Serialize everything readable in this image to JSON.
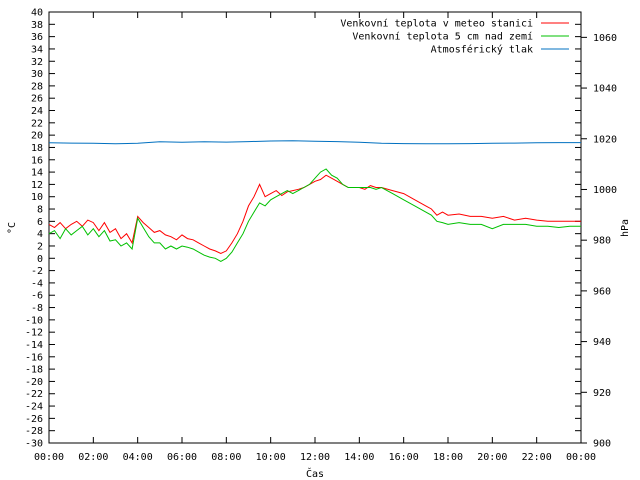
{
  "chart_data": {
    "type": "line",
    "title": "",
    "xlabel": "Čas",
    "ylabel": "°C",
    "y2label": "hPa",
    "x_hours_range": [
      0,
      24
    ],
    "ylim": [
      -30,
      40
    ],
    "y2lim": [
      900,
      1070
    ],
    "grid": false,
    "legend_position": "top-right",
    "x_ticks": [
      "00:00",
      "02:00",
      "04:00",
      "06:00",
      "08:00",
      "10:00",
      "12:00",
      "14:00",
      "16:00",
      "18:00",
      "20:00",
      "22:00",
      "00:00"
    ],
    "series": [
      {
        "name": "Venkovní teplota v meteo stanici",
        "color": "#ff0000",
        "axis": "left",
        "x": [
          0,
          0.25,
          0.5,
          0.75,
          1,
          1.25,
          1.5,
          1.75,
          2,
          2.25,
          2.5,
          2.75,
          3,
          3.25,
          3.5,
          3.75,
          4,
          4.25,
          4.5,
          4.75,
          5,
          5.25,
          5.5,
          5.75,
          6,
          6.25,
          6.5,
          6.75,
          7,
          7.25,
          7.5,
          7.75,
          8,
          8.25,
          8.5,
          8.75,
          9,
          9.25,
          9.5,
          9.75,
          10,
          10.25,
          10.5,
          10.75,
          11,
          11.25,
          11.5,
          11.75,
          12,
          12.25,
          12.5,
          12.75,
          13,
          13.25,
          13.5,
          13.75,
          14,
          14.25,
          14.5,
          14.75,
          15,
          15.5,
          16,
          16.5,
          17,
          17.25,
          17.5,
          17.75,
          18,
          18.5,
          19,
          19.5,
          20,
          20.5,
          21,
          21.5,
          22,
          22.5,
          23,
          23.5,
          24
        ],
        "values": [
          5.5,
          5,
          5.8,
          4.8,
          5.5,
          6,
          5.2,
          6.2,
          5.8,
          4.5,
          5.8,
          4.2,
          4.8,
          3.2,
          4,
          2.5,
          6.8,
          5.8,
          5,
          4.2,
          4.5,
          3.8,
          3.5,
          3,
          3.8,
          3.2,
          3,
          2.5,
          2,
          1.5,
          1.2,
          0.8,
          1.2,
          2.5,
          4,
          6,
          8.5,
          10,
          12,
          10,
          10.5,
          11,
          10.2,
          10.8,
          11,
          11.2,
          11.5,
          12,
          12.5,
          12.8,
          13.5,
          13,
          12.5,
          12,
          11.5,
          11.5,
          11.5,
          11.2,
          11.8,
          11.5,
          11.5,
          11,
          10.5,
          9.5,
          8.5,
          8,
          7,
          7.5,
          7,
          7.2,
          6.8,
          6.8,
          6.5,
          6.8,
          6.2,
          6.5,
          6.2,
          6,
          6,
          6,
          6
        ]
      },
      {
        "name": "Venkovní teplota 5 cm nad zemí",
        "color": "#00c000",
        "axis": "left",
        "x": [
          0,
          0.25,
          0.5,
          0.75,
          1,
          1.25,
          1.5,
          1.75,
          2,
          2.25,
          2.5,
          2.75,
          3,
          3.25,
          3.5,
          3.75,
          4,
          4.25,
          4.5,
          4.75,
          5,
          5.25,
          5.5,
          5.75,
          6,
          6.25,
          6.5,
          6.75,
          7,
          7.25,
          7.5,
          7.75,
          8,
          8.25,
          8.5,
          8.75,
          9,
          9.25,
          9.5,
          9.75,
          10,
          10.25,
          10.5,
          10.75,
          11,
          11.25,
          11.5,
          11.75,
          12,
          12.25,
          12.5,
          12.75,
          13,
          13.25,
          13.5,
          13.75,
          14,
          14.25,
          14.5,
          14.75,
          15,
          15.5,
          16,
          16.5,
          17,
          17.25,
          17.5,
          17.75,
          18,
          18.5,
          19,
          19.5,
          20,
          20.5,
          21,
          21.5,
          22,
          22.5,
          23,
          23.5,
          24
        ],
        "values": [
          4,
          4.5,
          3.2,
          4.8,
          3.8,
          4.5,
          5.2,
          3.8,
          4.8,
          3.5,
          4.5,
          2.8,
          3,
          2,
          2.5,
          1.5,
          6.5,
          5,
          3.5,
          2.5,
          2.5,
          1.5,
          2,
          1.5,
          2,
          1.8,
          1.5,
          1,
          0.5,
          0.2,
          0,
          -0.5,
          0,
          1,
          2.5,
          4,
          6,
          7.5,
          9,
          8.5,
          9.5,
          10,
          10.5,
          11,
          10.5,
          11,
          11.5,
          12,
          13,
          14,
          14.5,
          13.5,
          13,
          12,
          11.5,
          11.5,
          11.5,
          11.5,
          11.5,
          11.2,
          11.5,
          10.5,
          9.5,
          8.5,
          7.5,
          7,
          6,
          5.8,
          5.5,
          5.8,
          5.5,
          5.5,
          4.8,
          5.5,
          5.5,
          5.5,
          5.2,
          5.2,
          5,
          5.2,
          5.2
        ]
      },
      {
        "name": "Atmosférický tlak",
        "color": "#0070c0",
        "axis": "right",
        "x": [
          0,
          1,
          2,
          3,
          4,
          5,
          6,
          7,
          8,
          9,
          10,
          11,
          12,
          13,
          14,
          15,
          16,
          17,
          18,
          19,
          20,
          21,
          22,
          23,
          24
        ],
        "values": [
          1018.4,
          1018.3,
          1018.2,
          1018.0,
          1018.2,
          1018.8,
          1018.6,
          1018.8,
          1018.7,
          1018.9,
          1019.1,
          1019.2,
          1019.0,
          1018.9,
          1018.6,
          1018.2,
          1018.1,
          1018.0,
          1018.0,
          1018.1,
          1018.2,
          1018.3,
          1018.4,
          1018.5,
          1018.5
        ]
      }
    ]
  }
}
